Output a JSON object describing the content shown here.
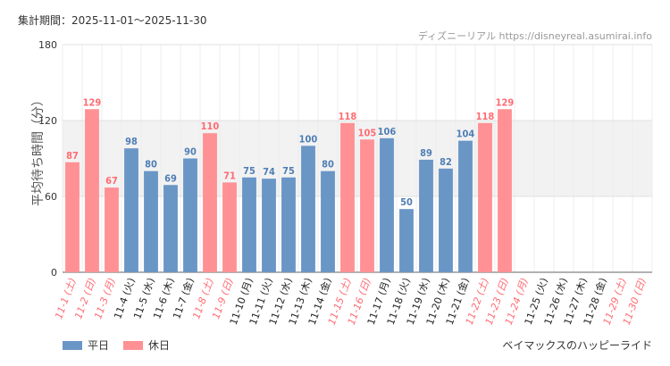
{
  "header": {
    "period": "集計期間：2025-11-01〜2025-11-30",
    "credit": "ディズニーリアル https://disneyreal.asumirai.info"
  },
  "ride_name": "ベイマックスのハッピーライド",
  "colors": {
    "weekday": "#6a96c6",
    "holiday": "#ff9194",
    "weekday_text": "#4f7eb4",
    "holiday_text": "#ff6b73",
    "band": "#f2f2f2",
    "grid": "#e0e0e0"
  },
  "legend": [
    {
      "key": "weekday",
      "label": "平日"
    },
    {
      "key": "holiday",
      "label": "休日"
    }
  ],
  "chart_data": {
    "type": "bar",
    "title": "",
    "ylabel": "平均待ち時間（分）",
    "ylim": [
      0,
      180
    ],
    "yticks": [
      0,
      60,
      120,
      180
    ],
    "band": [
      60,
      120
    ],
    "categories": [
      "11-1 (土)",
      "11-2 (日)",
      "11-3 (月)",
      "11-4 (火)",
      "11-5 (水)",
      "11-6 (木)",
      "11-7 (金)",
      "11-8 (土)",
      "11-9 (日)",
      "11-10 (月)",
      "11-11 (火)",
      "11-12 (水)",
      "11-13 (木)",
      "11-14 (金)",
      "11-15 (土)",
      "11-16 (日)",
      "11-17 (月)",
      "11-18 (火)",
      "11-19 (水)",
      "11-20 (木)",
      "11-21 (金)",
      "11-22 (土)",
      "11-23 (日)",
      "11-24 (月)",
      "11-25 (火)",
      "11-26 (水)",
      "11-27 (木)",
      "11-28 (金)",
      "11-29 (土)",
      "11-30 (日)"
    ],
    "day_type": [
      "holiday",
      "holiday",
      "holiday",
      "weekday",
      "weekday",
      "weekday",
      "weekday",
      "holiday",
      "holiday",
      "weekday",
      "weekday",
      "weekday",
      "weekday",
      "weekday",
      "holiday",
      "holiday",
      "weekday",
      "weekday",
      "weekday",
      "weekday",
      "weekday",
      "holiday",
      "holiday",
      "holiday",
      "weekday",
      "weekday",
      "weekday",
      "weekday",
      "holiday",
      "holiday"
    ],
    "values": [
      87,
      129,
      67,
      98,
      80,
      69,
      90,
      110,
      71,
      75,
      74,
      75,
      100,
      80,
      118,
      105,
      106,
      50,
      89,
      82,
      104,
      118,
      129,
      null,
      null,
      null,
      null,
      null,
      null,
      null
    ]
  }
}
